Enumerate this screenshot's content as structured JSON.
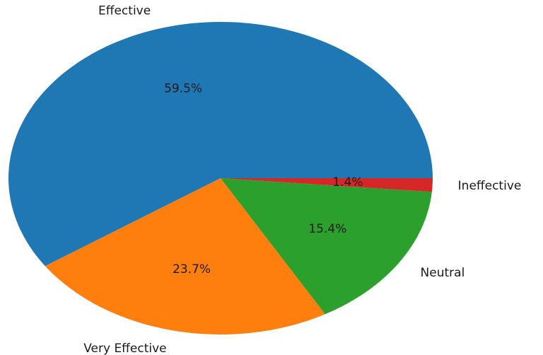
{
  "chart_data": {
    "type": "pie",
    "title": "",
    "categories": [
      "Effective",
      "Very Effective",
      "Neutral",
      "Ineffective"
    ],
    "values": [
      59.5,
      23.7,
      15.4,
      1.4
    ],
    "value_labels": [
      "59.5%",
      "23.7%",
      "15.4%",
      "1.4%"
    ],
    "colors": [
      "#1f77b4",
      "#ff7f0e",
      "#2ca02c",
      "#d62728"
    ],
    "start_angle_deg": 0,
    "direction": "counterclockwise",
    "legend": "none"
  }
}
